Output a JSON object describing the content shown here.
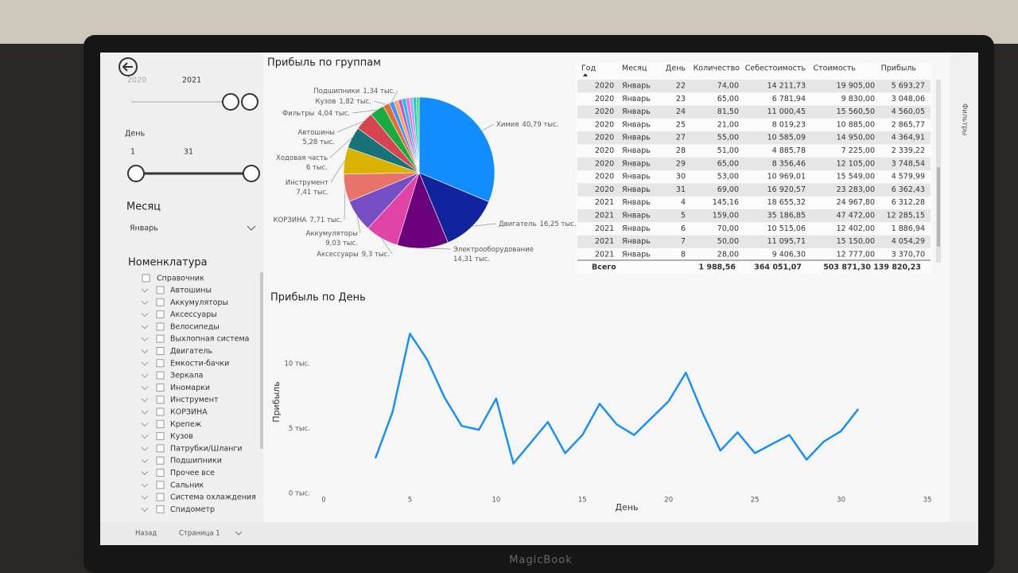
{
  "slicers": {
    "year": {
      "from": "2020",
      "to": "2021"
    },
    "day": {
      "title": "День",
      "from": "1",
      "to": "31"
    },
    "month": {
      "title": "Месяц",
      "value": "Январь"
    },
    "nomenclature": {
      "title": "Номенклатура",
      "root": "Справочник",
      "items": [
        "Автошины",
        "Аккумуляторы",
        "Аксессуары",
        "Велосипеды",
        "Выхлопная система",
        "Двигатель",
        "Емкости-бачки",
        "Зеркала",
        "Иномарки",
        "Инструмент",
        "КОРЗИНА",
        "Крепеж",
        "Кузов",
        "Патрубки/Шланги",
        "Подшипники",
        "Прочее все",
        "Сальник",
        "Система охлаждения",
        "Спидометр"
      ]
    }
  },
  "table": {
    "columns": [
      "Год",
      "Месяц",
      "День",
      "Количество",
      "Себестоимость",
      "Стоимость",
      "Прибыль"
    ],
    "rows": [
      [
        "2020",
        "Январь",
        "22",
        "74,00",
        "14 211,73",
        "19 905,00",
        "5 693,27"
      ],
      [
        "2020",
        "Январь",
        "23",
        "65,00",
        "6 781,94",
        "9 830,00",
        "3 048,06"
      ],
      [
        "2020",
        "Январь",
        "24",
        "81,50",
        "11 000,45",
        "15 560,50",
        "4 560,05"
      ],
      [
        "2020",
        "Январь",
        "25",
        "21,00",
        "8 019,23",
        "10 885,00",
        "2 865,77"
      ],
      [
        "2020",
        "Январь",
        "27",
        "55,00",
        "10 585,09",
        "14 950,00",
        "4 364,91"
      ],
      [
        "2020",
        "Январь",
        "28",
        "51,00",
        "4 885,78",
        "7 225,00",
        "2 339,22"
      ],
      [
        "2020",
        "Январь",
        "29",
        "65,00",
        "8 356,46",
        "12 105,00",
        "3 748,54"
      ],
      [
        "2020",
        "Январь",
        "30",
        "53,00",
        "10 969,01",
        "15 549,00",
        "4 579,99"
      ],
      [
        "2020",
        "Январь",
        "31",
        "69,00",
        "16 920,57",
        "23 283,00",
        "6 362,43"
      ],
      [
        "2021",
        "Январь",
        "4",
        "145,16",
        "18 655,32",
        "24 967,80",
        "6 312,28"
      ],
      [
        "2021",
        "Январь",
        "5",
        "159,00",
        "35 186,85",
        "47 472,00",
        "12 285,15"
      ],
      [
        "2021",
        "Январь",
        "6",
        "70,00",
        "10 515,06",
        "12 402,00",
        "1 886,94"
      ],
      [
        "2021",
        "Январь",
        "7",
        "50,00",
        "11 095,71",
        "15 150,00",
        "4 054,29"
      ],
      [
        "2021",
        "Январь",
        "8",
        "28,00",
        "9 406,30",
        "12 777,00",
        "3 370,70"
      ]
    ],
    "total": [
      "Всего",
      "1 988,56",
      "364 051,07",
      "503 871,30",
      "139 820,23"
    ]
  },
  "chart_data": [
    {
      "type": "pie",
      "title": "Прибыль по группам",
      "categories": [
        "Химия",
        "Двигатель",
        "Электрооборудование",
        "Аксессуары",
        "Аккумуляторы",
        "КОРЗИНА",
        "Инструмент",
        "Ходовая часть",
        "Автошины",
        "Фильтры",
        "Кузов",
        "Подшипники",
        null,
        null,
        null,
        null,
        null,
        null,
        null
      ],
      "values": [
        40.79,
        16.25,
        14.31,
        9.3,
        9.03,
        7.71,
        7.41,
        6,
        5.28,
        4.04,
        1.82,
        1.34,
        1.2,
        1.1,
        1.1,
        1.0,
        1.0,
        0.9,
        0.8
      ],
      "value_labels": [
        "40,79 тыс.",
        "16,25 тыс.",
        "14,31 тыс.",
        "9,3 тыс.",
        "9,03 тыс.",
        "7,71 тыс.",
        "7,41 тыс.",
        "6 тыс.",
        "5,28 тыс.",
        "4,04 тыс.",
        "1,82 тыс.",
        "1,34 тыс.",
        null,
        null,
        null,
        null,
        null,
        null,
        null
      ],
      "colors": [
        "#118DFF",
        "#12239E",
        "#6B007B",
        "#E044A7",
        "#744EC2",
        "#E8736B",
        "#D9B300",
        "#197278",
        "#D64550",
        "#1AAB40",
        "#E66C37",
        "#4092FF",
        "#FFA058",
        "#BE5DC9",
        "#15C6F4",
        "#F472D0",
        "#B5A1FF",
        "#00DBBC",
        "#5BD667"
      ]
    },
    {
      "type": "line",
      "title": "Прибыль по День",
      "xlabel": "День",
      "ylabel": "Прибыль",
      "color": "#118DFF",
      "x": [
        3,
        4,
        5,
        6,
        7,
        8,
        9,
        10,
        11,
        12,
        13,
        14,
        15,
        16,
        17,
        18,
        19,
        20,
        21,
        22,
        23,
        24,
        25,
        26,
        27,
        28,
        29,
        30,
        31
      ],
      "values": [
        2700,
        6300,
        12300,
        10300,
        7400,
        5200,
        4900,
        7300,
        2300,
        3900,
        5500,
        3100,
        4500,
        6900,
        5300,
        4500,
        5800,
        7100,
        9300,
        6100,
        3300,
        4700,
        3100,
        3800,
        4500,
        2600,
        4000,
        4800,
        6500
      ],
      "xlim": [
        0,
        35
      ],
      "xticks": [
        0,
        5,
        10,
        15,
        20,
        25,
        30,
        35
      ],
      "ylim": [
        0,
        12500
      ],
      "yticks": [
        {
          "value": 0,
          "label": "0 тыс."
        },
        {
          "value": 5000,
          "label": "5 тыс."
        },
        {
          "value": 10000,
          "label": "10 тыс."
        }
      ]
    }
  ],
  "footer": {
    "back": "Назад",
    "page": "Страница 1"
  },
  "filters_pane": "Фильтры",
  "brand": "MagicBook"
}
